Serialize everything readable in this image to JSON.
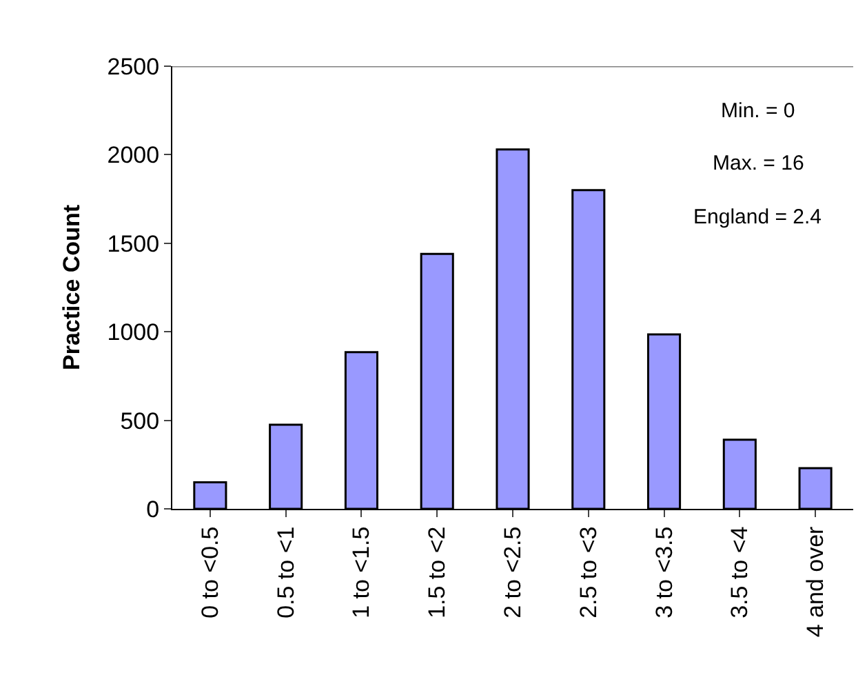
{
  "chart_data": {
    "type": "bar",
    "ylabel": "Practice Count",
    "categories": [
      "0 to <0.5",
      "0.5 to <1",
      "1 to <1.5",
      "1.5 to <2",
      "2 to <2.5",
      "2.5 to <3",
      "3 to <3.5",
      "3.5 to <4",
      "4 and over"
    ],
    "values": [
      150,
      475,
      885,
      1440,
      2030,
      1800,
      985,
      390,
      230
    ],
    "color": "#9999ff",
    "ylim": [
      0,
      2500
    ],
    "yticks": [
      0,
      500,
      1000,
      1500,
      2000,
      2500
    ],
    "annotations": [
      "Min. = 0",
      "Max. = 16",
      "England = 2.4"
    ]
  }
}
